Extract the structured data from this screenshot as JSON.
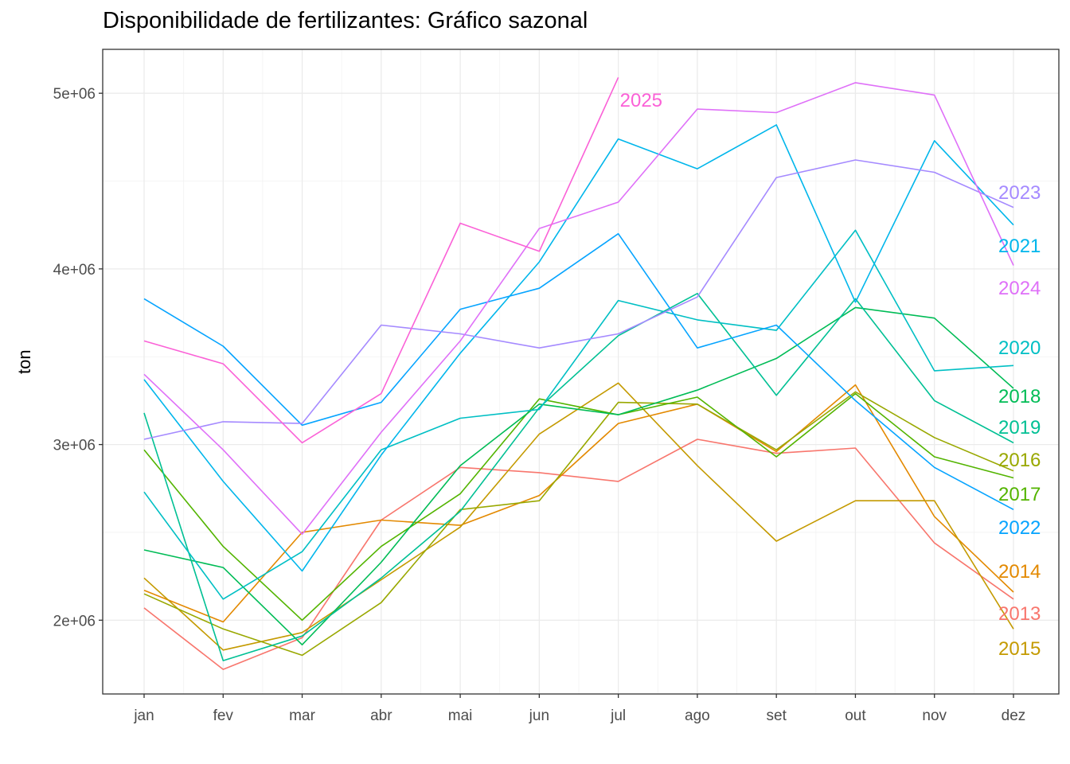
{
  "chart_data": {
    "type": "line",
    "title": "Disponibilidade de fertilizantes: Gráfico sazonal",
    "xlabel": "",
    "ylabel": "ton",
    "categories": [
      "jan",
      "fev",
      "mar",
      "abr",
      "mai",
      "jun",
      "jul",
      "ago",
      "set",
      "out",
      "nov",
      "dez"
    ],
    "ylim": [
      1580000,
      5250000
    ],
    "yticks": [
      2000000,
      3000000,
      4000000,
      5000000
    ],
    "ytick_labels": [
      "2e+06",
      "3e+06",
      "4e+06",
      "5e+06"
    ],
    "grid": true,
    "legend": "direct-labels-right",
    "series": [
      {
        "name": "2013",
        "color": "#F8766D",
        "values": [
          2070000,
          1720000,
          1900000,
          2570000,
          2870000,
          2840000,
          2790000,
          3030000,
          2950000,
          2980000,
          2440000,
          2120000
        ]
      },
      {
        "name": "2014",
        "color": "#E38900",
        "values": [
          2170000,
          1990000,
          2500000,
          2570000,
          2540000,
          2710000,
          3120000,
          3230000,
          2960000,
          3340000,
          2590000,
          2160000
        ]
      },
      {
        "name": "2015",
        "color": "#C49A00",
        "values": [
          2240000,
          1830000,
          1930000,
          2230000,
          2530000,
          3060000,
          3350000,
          2880000,
          2450000,
          2680000,
          2680000,
          1950000
        ]
      },
      {
        "name": "2016",
        "color": "#99A800",
        "values": [
          2150000,
          1950000,
          1800000,
          2100000,
          2630000,
          2680000,
          3240000,
          3230000,
          2970000,
          3300000,
          3040000,
          2850000
        ]
      },
      {
        "name": "2017",
        "color": "#53B400",
        "values": [
          2970000,
          2420000,
          2000000,
          2420000,
          2720000,
          3260000,
          3170000,
          3270000,
          2930000,
          3290000,
          2930000,
          2810000
        ]
      },
      {
        "name": "2018",
        "color": "#00BC56",
        "values": [
          2400000,
          2300000,
          1860000,
          2330000,
          2880000,
          3230000,
          3170000,
          3310000,
          3490000,
          3780000,
          3720000,
          3320000
        ]
      },
      {
        "name": "2019",
        "color": "#00C094",
        "values": [
          3180000,
          1770000,
          1910000,
          2240000,
          2620000,
          3210000,
          3620000,
          3860000,
          3280000,
          3830000,
          3250000,
          3010000
        ]
      },
      {
        "name": "2020",
        "color": "#00BFC4",
        "values": [
          2730000,
          2120000,
          2390000,
          2970000,
          3150000,
          3200000,
          3820000,
          3710000,
          3650000,
          4220000,
          3420000,
          3450000
        ]
      },
      {
        "name": "2021",
        "color": "#00B6EB",
        "values": [
          3370000,
          2790000,
          2280000,
          2940000,
          3520000,
          4040000,
          4740000,
          4570000,
          4820000,
          3810000,
          4730000,
          4250000
        ]
      },
      {
        "name": "2022",
        "color": "#06A4FF",
        "values": [
          3830000,
          3560000,
          3110000,
          3240000,
          3770000,
          3890000,
          4200000,
          3550000,
          3680000,
          3250000,
          2870000,
          2630000
        ]
      },
      {
        "name": "2023",
        "color": "#A58AFF",
        "values": [
          3030000,
          3130000,
          3120000,
          3680000,
          3630000,
          3550000,
          3630000,
          3840000,
          4520000,
          4620000,
          4550000,
          4350000
        ]
      },
      {
        "name": "2024",
        "color": "#DF70F8",
        "values": [
          3400000,
          2970000,
          2490000,
          3070000,
          3590000,
          4230000,
          4380000,
          4910000,
          4890000,
          5060000,
          4990000,
          4020000
        ]
      },
      {
        "name": "2025",
        "color": "#FB61D7",
        "values": [
          3590000,
          3460000,
          3010000,
          3290000,
          4260000,
          4100000,
          5090000
        ]
      }
    ]
  }
}
